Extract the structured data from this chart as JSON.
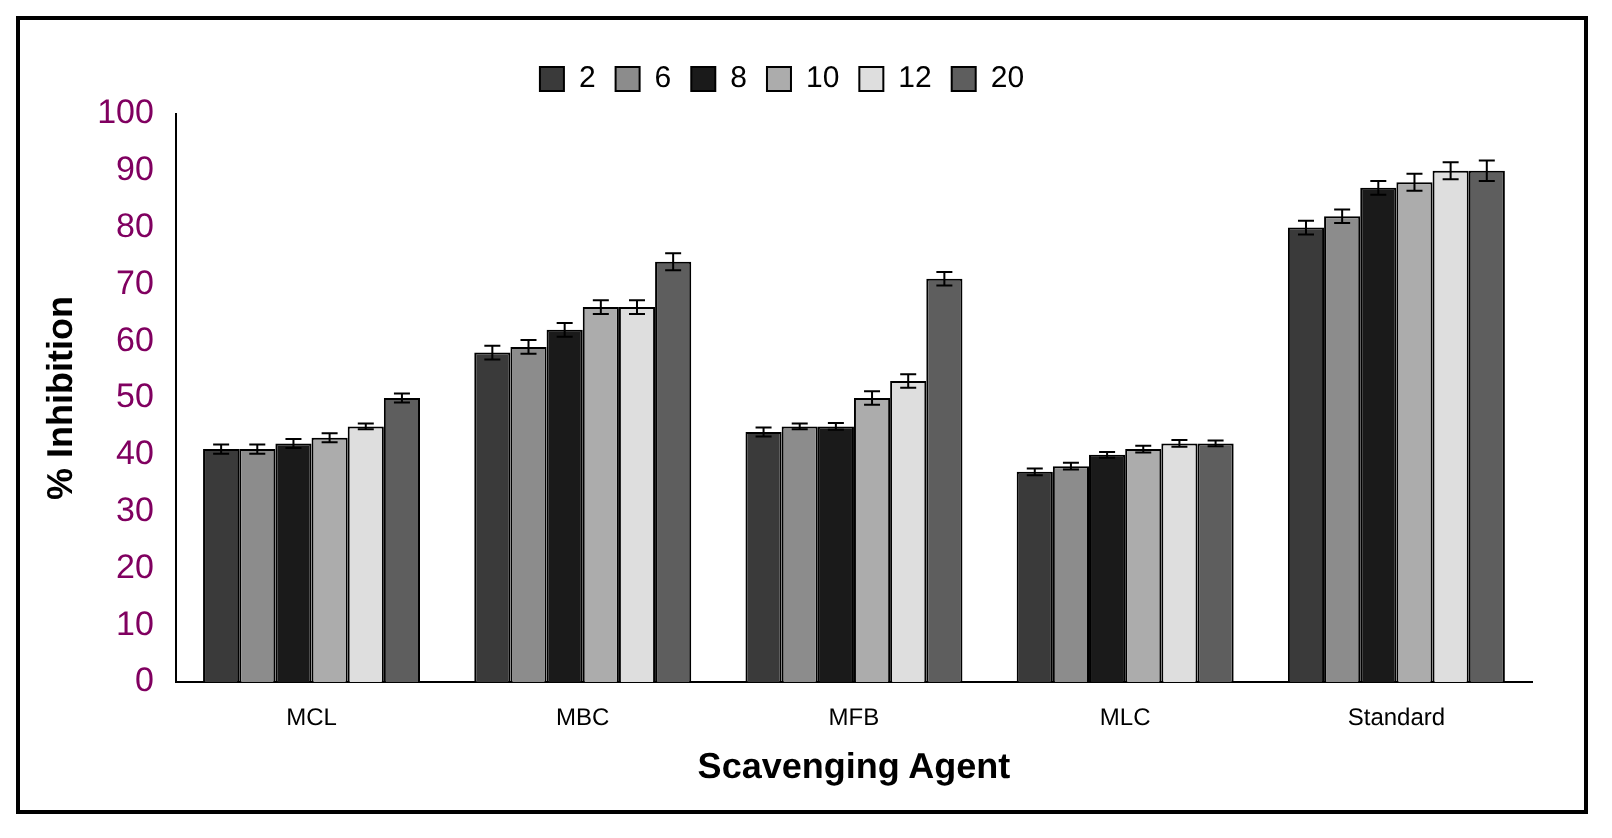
{
  "chart_data": {
    "type": "bar",
    "xlabel": "Scavenging Agent",
    "ylabel": "% Inhibition",
    "categories": [
      "MCL",
      "MBC",
      "MFB",
      "MLC",
      "Standard"
    ],
    "series": [
      {
        "name": "2",
        "color": "#3a3a3a",
        "values": [
          41,
          58,
          44,
          37,
          80
        ],
        "errors": [
          0.8,
          1.2,
          0.8,
          0.6,
          1.2
        ]
      },
      {
        "name": "6",
        "color": "#8c8c8c",
        "values": [
          41,
          59,
          45,
          38,
          82
        ],
        "errors": [
          0.8,
          1.2,
          0.5,
          0.6,
          1.2
        ]
      },
      {
        "name": "8",
        "color": "#1a1a1a",
        "values": [
          42,
          62,
          45,
          40,
          87
        ],
        "errors": [
          0.8,
          1.2,
          0.6,
          0.5,
          1.2
        ]
      },
      {
        "name": "10",
        "color": "#acacac",
        "values": [
          43,
          66,
          50,
          41,
          88
        ],
        "errors": [
          0.8,
          1.2,
          1.2,
          0.6,
          1.5
        ]
      },
      {
        "name": "12",
        "color": "#dedede",
        "values": [
          45,
          66,
          53,
          42,
          90
        ],
        "errors": [
          0.5,
          1.2,
          1.2,
          0.6,
          1.5
        ]
      },
      {
        "name": "20",
        "color": "#5e5e5e",
        "values": [
          50,
          74,
          71,
          42,
          90
        ],
        "errors": [
          0.8,
          1.5,
          1.2,
          0.5,
          1.8
        ]
      }
    ],
    "ylim": [
      0,
      100
    ],
    "yticks": [
      0,
      10,
      20,
      30,
      40,
      50,
      60,
      70,
      80,
      90,
      100
    ],
    "grid": false,
    "legend": "top"
  }
}
